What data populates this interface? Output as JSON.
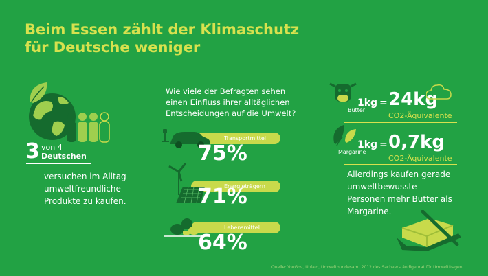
{
  "colors": {
    "background": "#22a244",
    "accent_yellow": "#d7e14e",
    "bar_lime": "#c8da4b",
    "dark_green": "#156b2e",
    "text_white": "#ffffff"
  },
  "title": {
    "line1": "Beim Essen zählt der Klimaschutz",
    "line2": "für Deutsche weniger"
  },
  "left": {
    "stat_big": "3",
    "stat_von": "von 4",
    "stat_noun": "Deutschen",
    "body_line1": "versuchen im Alltag",
    "body_line2": "umweltfreundliche",
    "body_line3": "Produkte zu kaufen.",
    "icons": [
      "globe-icon",
      "leaf-icon",
      "people-icon"
    ]
  },
  "middle": {
    "question_line1": "Wie viele der Befragten sehen",
    "question_line2": "einen Einfluss ihrer alltäglichen",
    "question_line3": "Entscheidungen auf die Umwelt?",
    "items": [
      {
        "label": "Transportmittel",
        "percent": "75%",
        "value": 75,
        "icon": "electric-car-icon"
      },
      {
        "label": "Energieträgern",
        "percent": "71%",
        "value": 71,
        "icon": "solar-wind-icon"
      },
      {
        "label": "Lebensmittel",
        "percent": "64%",
        "value": 64,
        "icon": "food-icon"
      }
    ]
  },
  "right": {
    "butter": {
      "name": "Butter",
      "amount": "1kg",
      "equals": "=",
      "value": "24kg",
      "unit": "CO2-Äquivalente",
      "icon": "cow-icon"
    },
    "margarine": {
      "name": "Margarine",
      "amount": "1kg",
      "equals": "=",
      "value": "0,7kg",
      "unit": "CO2-Äquivalente",
      "icon": "plant-icon"
    },
    "body_line1": "Allerdings kaufen gerade",
    "body_line2": "umweltbewusste",
    "body_line3": "Personen mehr Butter als",
    "body_line4": "Margarine.",
    "bottom_icon": "butter-block-icon"
  },
  "source": "Quelle: YouGov, Uplaid, Umweltbundesamt 2012 des Sachverständigenrat für Umweltfragen"
}
